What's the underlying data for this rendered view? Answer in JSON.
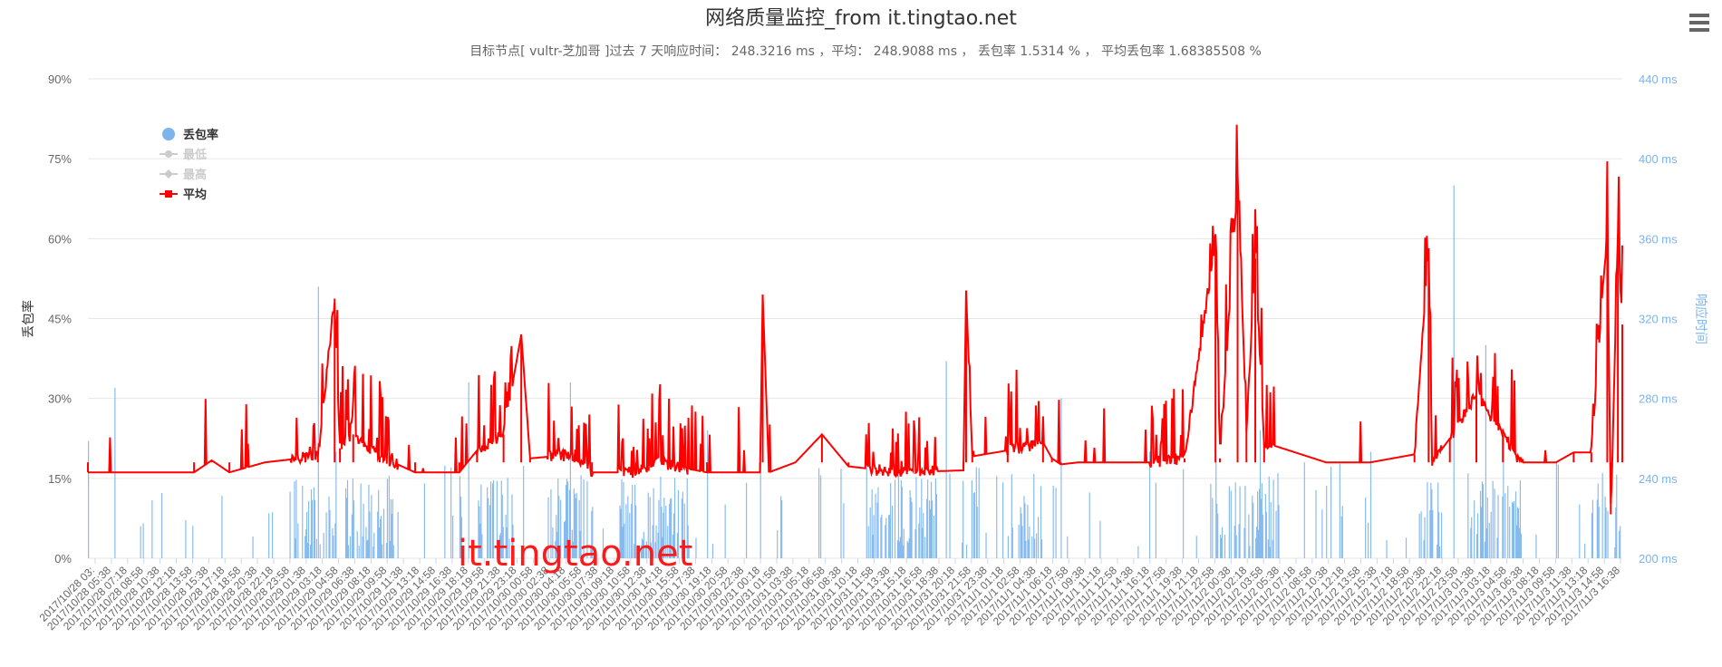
{
  "chart_data": {
    "type": "line",
    "title": "网络质量监控_from it.tingtao.net",
    "subtitle": "目标节点[ vultr-芝加哥 ]过去 7 天响应时间： 248.3216 ms ，平均： 248.9088 ms ， 丢包率 1.5314 % ， 平均丢包率 1.68385508 %",
    "ylabel_left": "丢包率",
    "ylabel_right": "响应时间",
    "y_left": {
      "min": 0,
      "max": 90,
      "ticks": [
        "0%",
        "15%",
        "30%",
        "45%",
        "60%",
        "75%",
        "90%"
      ]
    },
    "y_right": {
      "min": 200,
      "max": 440,
      "ticks": [
        "200 ms",
        "240 ms",
        "280 ms",
        "320 ms",
        "360 ms",
        "400 ms",
        "440 ms"
      ]
    },
    "x_tick_labels": [
      "2017/10/28 03:",
      "2017/10/28 05:38",
      "2017/10/28 07:18",
      "2017/10/28 08:58",
      "2017/10/28 10:38",
      "2017/10/28 12:18",
      "2017/10/28 13:58",
      "2017/10/28 15:38",
      "2017/10/28 17:18",
      "2017/10/28 18:58",
      "2017/10/28 20:38",
      "2017/10/28 22:18",
      "2017/10/28 23:58",
      "2017/10/29 01:38",
      "2017/10/29 03:18",
      "2017/10/29 04:58",
      "2017/10/29 06:38",
      "2017/10/29 08:18",
      "2017/10/29 09:58",
      "2017/10/29 11:38",
      "2017/10/29 13:18",
      "2017/10/29 14:58",
      "2017/10/29 16:38",
      "2017/10/29 18:18",
      "2017/10/29 19:58",
      "2017/10/29 21:38",
      "2017/10/29 23:18",
      "2017/10/30 00:58",
      "2017/10/30 02:38",
      "2017/10/30 04:18",
      "2017/10/30 05:58",
      "2017/10/30 07:38",
      "2017/10/30 09:18",
      "2017/10/30 10:58",
      "2017/10/30 12:38",
      "2017/10/30 14:18",
      "2017/10/30 15:58",
      "2017/10/30 17:38",
      "2017/10/30 19:18",
      "2017/10/30 20:58",
      "2017/10/30 22:38",
      "2017/10/31 00:18",
      "2017/10/31 01:58",
      "2017/10/31 03:38",
      "2017/10/31 05:18",
      "2017/10/31 06:58",
      "2017/10/31 08:38",
      "2017/10/31 10:18",
      "2017/10/31 11:58",
      "2017/10/31 13:38",
      "2017/10/31 15:18",
      "2017/10/31 16:58",
      "2017/10/31 18:38",
      "2017/10/31 20:18",
      "2017/10/31 21:58",
      "2017/10/31 23:38",
      "2017/11/1 01:18",
      "2017/11/1 02:58",
      "2017/11/1 04:38",
      "2017/11/1 06:18",
      "2017/11/1 07:58",
      "2017/11/1 09:38",
      "2017/11/1 11:18",
      "2017/11/1 12:58",
      "2017/11/1 14:38",
      "2017/11/1 16:18",
      "2017/11/1 17:58",
      "2017/11/1 19:38",
      "2017/11/1 21:18",
      "2017/11/1 22:58",
      "2017/11/2 00:38",
      "2017/11/2 02:18",
      "2017/11/2 03:58",
      "2017/11/2 05:38",
      "2017/11/2 07:18",
      "2017/11/2 08:58",
      "2017/11/2 10:38",
      "2017/11/2 12:18",
      "2017/11/2 13:58",
      "2017/11/2 15:38",
      "2017/11/2 17:18",
      "2017/11/2 18:58",
      "2017/11/2 20:38",
      "2017/11/2 22:18",
      "2017/11/2 23:58",
      "2017/11/3 01:38",
      "2017/11/3 03:18",
      "2017/11/3 04:58",
      "2017/11/3 06:38",
      "2017/11/3 08:18",
      "2017/11/3 09:58",
      "2017/11/3 11:38",
      "2017/11/3 13:18",
      "2017/11/3 14:58",
      "2017/11/3 16:38"
    ],
    "legend": {
      "placement": "top-left",
      "items": [
        {
          "name": "丢包率",
          "color": "#7cb5ec",
          "marker": "circle",
          "visible": true
        },
        {
          "name": "最低",
          "color": "#cccccc",
          "marker": "circle-line",
          "visible": false
        },
        {
          "name": "最高",
          "color": "#cccccc",
          "marker": "diamond-line",
          "visible": false
        },
        {
          "name": "平均",
          "color": "#ff0000",
          "marker": "square-line",
          "visible": true
        }
      ]
    },
    "grid": true,
    "series": [
      {
        "name": "平均",
        "axis": "right",
        "color": "#ff0000",
        "description_points": [
          [
            0,
            243
          ],
          [
            120,
            243
          ],
          [
            140,
            249
          ],
          [
            160,
            243
          ],
          [
            200,
            248
          ],
          [
            260,
            251
          ],
          [
            279,
            330
          ],
          [
            285,
            255
          ],
          [
            300,
            262
          ],
          [
            330,
            251
          ],
          [
            370,
            243
          ],
          [
            420,
            243
          ],
          [
            440,
            254
          ],
          [
            470,
            262
          ],
          [
            490,
            312
          ],
          [
            500,
            250
          ],
          [
            550,
            252
          ],
          [
            570,
            243
          ],
          [
            620,
            243
          ],
          [
            640,
            248
          ],
          [
            700,
            243
          ],
          [
            760,
            243
          ],
          [
            763,
            332
          ],
          [
            770,
            243
          ],
          [
            800,
            248
          ],
          [
            830,
            262
          ],
          [
            860,
            246
          ],
          [
            920,
            243
          ],
          [
            990,
            244
          ],
          [
            993,
            334
          ],
          [
            1000,
            251
          ],
          [
            1040,
            254
          ],
          [
            1080,
            258
          ],
          [
            1090,
            250
          ],
          [
            1100,
            247
          ],
          [
            1120,
            248
          ],
          [
            1160,
            248
          ],
          [
            1200,
            248
          ],
          [
            1240,
            250
          ],
          [
            1275,
            360
          ],
          [
            1280,
            250
          ],
          [
            1300,
            390
          ],
          [
            1310,
            265
          ],
          [
            1320,
            350
          ],
          [
            1330,
            258
          ],
          [
            1400,
            248
          ],
          [
            1450,
            248
          ],
          [
            1500,
            252
          ],
          [
            1516,
            355
          ],
          [
            1520,
            248
          ],
          [
            1540,
            260
          ],
          [
            1570,
            282
          ],
          [
            1600,
            262
          ],
          [
            1620,
            248
          ],
          [
            1660,
            248
          ],
          [
            1680,
            253
          ],
          [
            1700,
            253
          ],
          [
            1718,
            365
          ],
          [
            1722,
            222
          ],
          [
            1730,
            362
          ],
          [
            1735,
            317
          ]
        ]
      },
      {
        "name": "丢包率",
        "axis": "left",
        "color": "#7cb5ec",
        "description_peaks": [
          [
            0,
            22
          ],
          [
            30,
            32
          ],
          [
            260,
            51
          ],
          [
            280,
            20
          ],
          [
            430,
            33
          ],
          [
            545,
            33
          ],
          [
            700,
            24
          ],
          [
            760,
            16
          ],
          [
            880,
            19
          ],
          [
            970,
            37
          ],
          [
            1100,
            30
          ],
          [
            1200,
            20
          ],
          [
            1275,
            20
          ],
          [
            1325,
            24
          ],
          [
            1375,
            18
          ],
          [
            1450,
            20
          ],
          [
            1544,
            70
          ],
          [
            1580,
            40
          ],
          [
            1600,
            24
          ],
          [
            1660,
            18
          ],
          [
            1712,
            16
          ]
        ]
      }
    ]
  },
  "watermark": "it.tingtao.net",
  "menu_icon": "hamburger-menu-icon"
}
